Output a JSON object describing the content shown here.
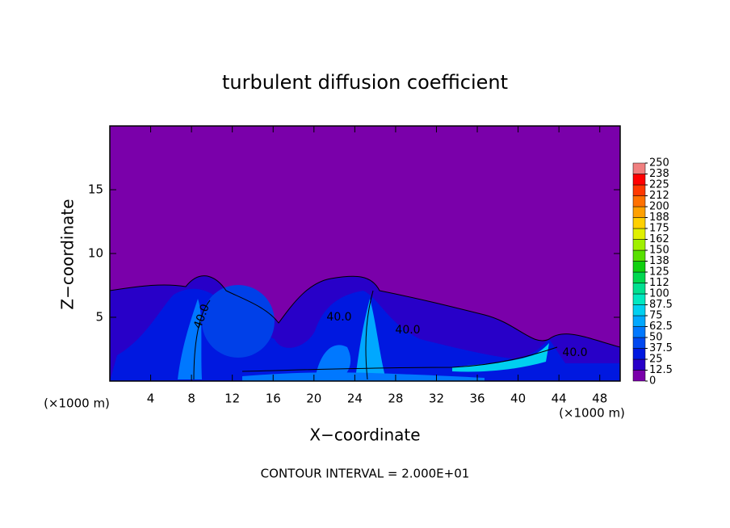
{
  "chart_data": {
    "type": "contour",
    "title": "turbulent diffusion coefficient",
    "x_label": "X−coordinate",
    "y_label": "Z−coordinate",
    "x_unit": "(×1000 m)",
    "y_unit": "(×1000 m)",
    "xlim": [
      0,
      50
    ],
    "xticks": [
      4,
      8,
      12,
      16,
      20,
      24,
      28,
      32,
      36,
      40,
      44,
      48
    ],
    "ylim": [
      0,
      20
    ],
    "yticks": [
      5,
      10,
      15
    ],
    "contour_labels": [
      "40.0",
      "40.0",
      "40.0",
      "40.0"
    ],
    "colorbar": {
      "levels": [
        0,
        12.5,
        25,
        37.5,
        50,
        62.5,
        75,
        87.5,
        100,
        {
          "value": 112.5,
          "label": "112"
        },
        125,
        {
          "value": 137.5,
          "label": "138"
        },
        150,
        {
          "value": 162.5,
          "label": "162"
        },
        175,
        {
          "value": 187.5,
          "label": "188"
        },
        200,
        {
          "value": 212.5,
          "label": "212"
        },
        225,
        {
          "value": 237.5,
          "label": "238"
        },
        250
      ],
      "colors": [
        "#7a00aa",
        "#2800c8",
        "#0018e0",
        "#0048f0",
        "#0078ff",
        "#00a8ff",
        "#00d0f0",
        "#00e8c0",
        "#00e090",
        "#00d850",
        "#10d010",
        "#58e000",
        "#a0f000",
        "#e0f000",
        "#ffd000",
        "#ffa000",
        "#ff7000",
        "#ff3800",
        "#ff0000",
        "#f08080"
      ]
    },
    "footer": "CONTOUR INTERVAL = 2.000E+01"
  }
}
